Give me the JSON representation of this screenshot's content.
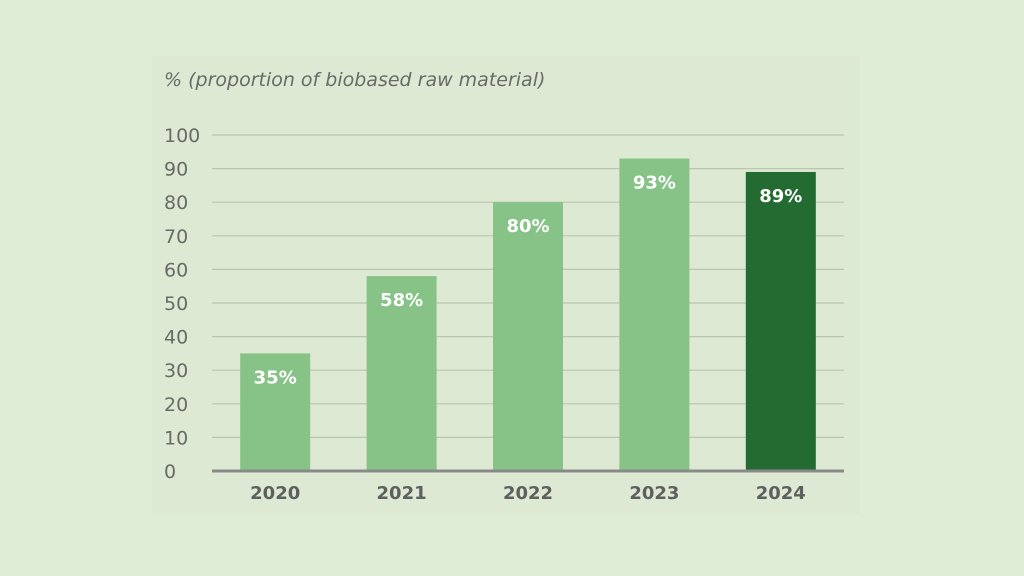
{
  "chart_data": {
    "type": "bar",
    "ylabel": "% (proportion of biobased raw material)",
    "categories": [
      "2020",
      "2021",
      "2022",
      "2023",
      "2024"
    ],
    "values": [
      35,
      58,
      80,
      93,
      89
    ],
    "value_labels": [
      "35%",
      "58%",
      "80%",
      "93%",
      "89%"
    ],
    "ylim": [
      0,
      100
    ],
    "yticks": [
      0,
      10,
      20,
      30,
      40,
      50,
      60,
      70,
      80,
      90,
      100
    ],
    "grid": true,
    "bar_colors": [
      "#87c386",
      "#87c386",
      "#87c386",
      "#87c386",
      "#246b31"
    ]
  }
}
